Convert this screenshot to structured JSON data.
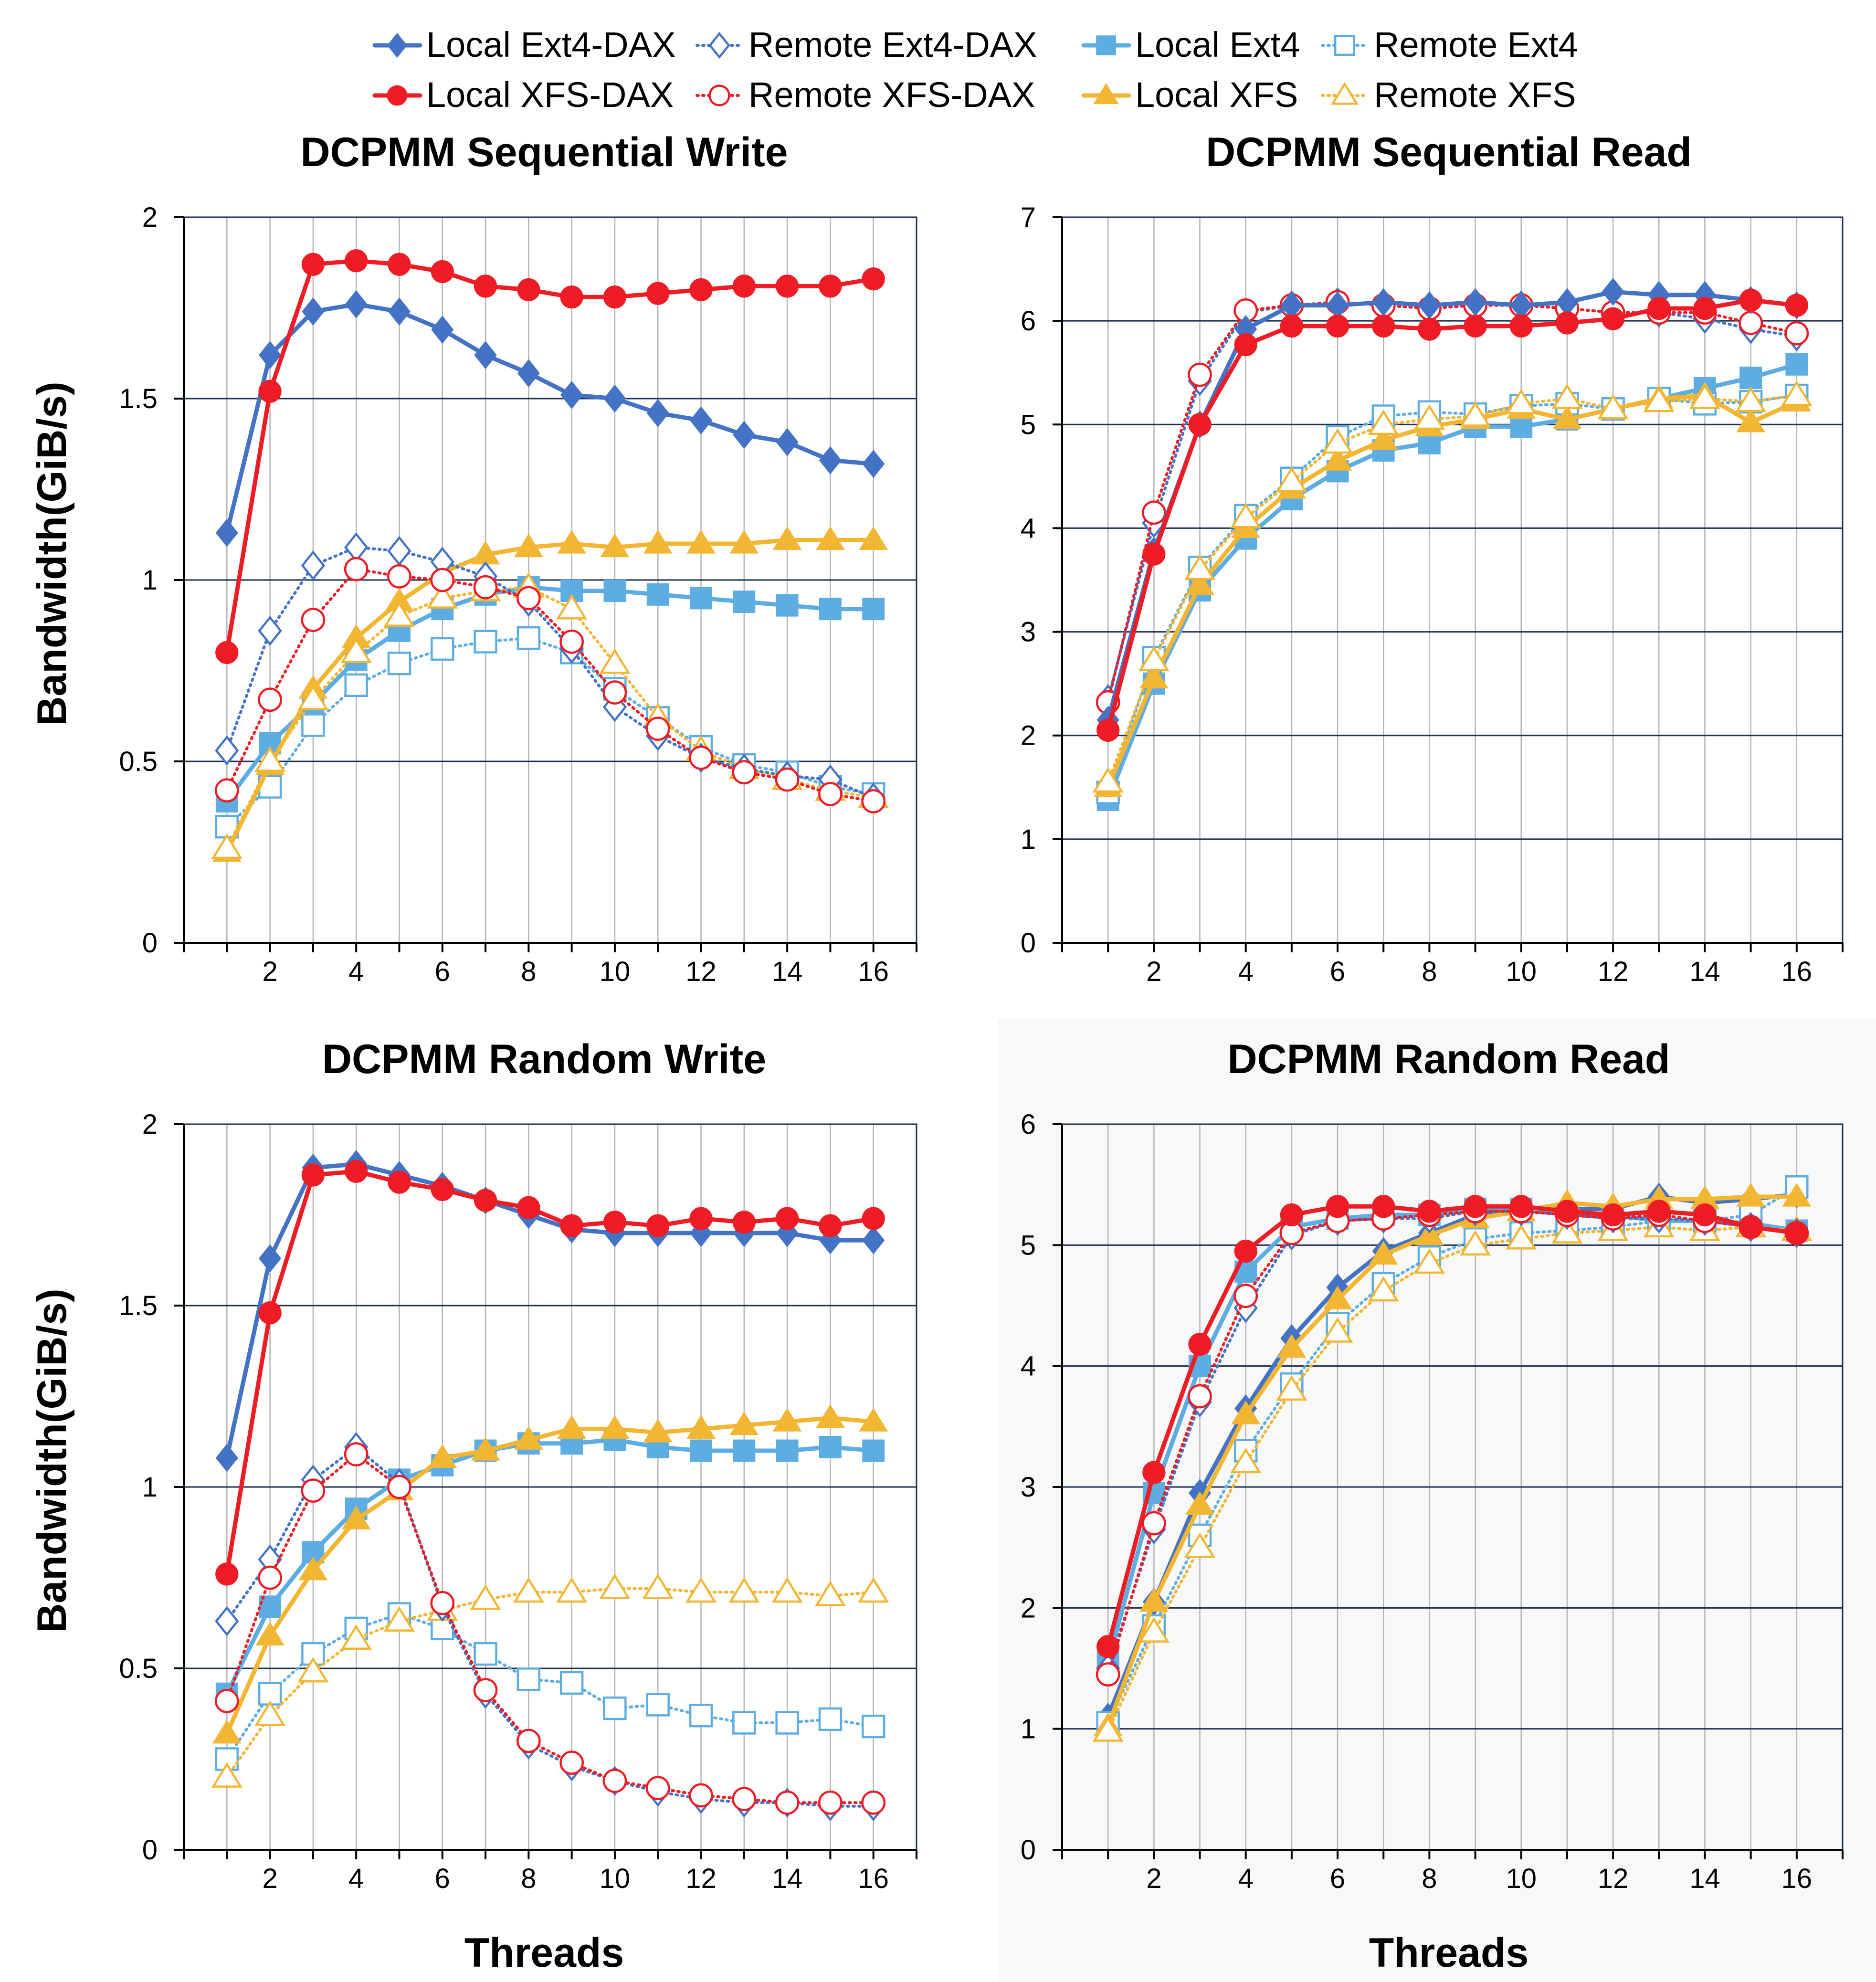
{
  "legend": [
    {
      "label": "Local Ext4-DAX",
      "series_key": "local_ext4_dax"
    },
    {
      "label": "Remote Ext4-DAX",
      "series_key": "remote_ext4_dax"
    },
    {
      "label": "Local Ext4",
      "series_key": "local_ext4"
    },
    {
      "label": "Remote Ext4",
      "series_key": "remote_ext4"
    },
    {
      "label": "Local XFS-DAX",
      "series_key": "local_xfs_dax"
    },
    {
      "label": "Remote XFS-DAX",
      "series_key": "remote_xfs_dax"
    },
    {
      "label": "Local XFS",
      "series_key": "local_xfs"
    },
    {
      "label": "Remote XFS",
      "series_key": "remote_xfs"
    }
  ],
  "series_styles": {
    "local_ext4_dax": {
      "color": "#4472C4",
      "marker": "diamond",
      "filled": true,
      "dashed": false
    },
    "remote_ext4_dax": {
      "color": "#4472C4",
      "marker": "diamond",
      "filled": false,
      "dashed": true
    },
    "local_ext4": {
      "color": "#5DADE2",
      "marker": "square",
      "filled": true,
      "dashed": false
    },
    "remote_ext4": {
      "color": "#5DADE2",
      "marker": "square",
      "filled": false,
      "dashed": true
    },
    "local_xfs_dax": {
      "color": "#EE1C25",
      "marker": "circle",
      "filled": true,
      "dashed": false
    },
    "remote_xfs_dax": {
      "color": "#EE1C25",
      "marker": "circle",
      "filled": false,
      "dashed": true
    },
    "local_xfs": {
      "color": "#F2B632",
      "marker": "triangle",
      "filled": true,
      "dashed": false
    },
    "remote_xfs": {
      "color": "#F2B632",
      "marker": "triangle",
      "filled": false,
      "dashed": true
    }
  },
  "chart_data": [
    {
      "type": "line",
      "title": "DCPMM Sequential Write",
      "xlabel": "",
      "ylabel": "Bandwidth(GiB/s)",
      "x": [
        1,
        2,
        3,
        4,
        5,
        6,
        7,
        8,
        9,
        10,
        11,
        12,
        13,
        14,
        15,
        16
      ],
      "xticks": [
        2,
        4,
        6,
        8,
        10,
        12,
        14,
        16
      ],
      "xlim": [
        0,
        17
      ],
      "ylim": [
        0,
        2
      ],
      "yticks": [
        0,
        0.5,
        1,
        1.5,
        2
      ],
      "ytick_labels": [
        "0",
        "0.5",
        "1",
        "1.5",
        "2"
      ],
      "series": [
        {
          "key": "local_ext4",
          "values": [
            0.39,
            0.55,
            0.66,
            0.78,
            0.86,
            0.92,
            0.96,
            0.98,
            0.97,
            0.97,
            0.96,
            0.95,
            0.94,
            0.93,
            0.92,
            0.92
          ]
        },
        {
          "key": "remote_ext4",
          "values": [
            0.32,
            0.43,
            0.6,
            0.71,
            0.77,
            0.81,
            0.83,
            0.84,
            0.8,
            0.7,
            0.62,
            0.54,
            0.49,
            0.47,
            0.43,
            0.41
          ]
        },
        {
          "key": "local_xfs",
          "values": [
            0.25,
            0.49,
            0.7,
            0.84,
            0.94,
            1.02,
            1.07,
            1.09,
            1.1,
            1.09,
            1.1,
            1.1,
            1.1,
            1.11,
            1.11,
            1.11
          ]
        },
        {
          "key": "remote_xfs",
          "values": [
            0.26,
            0.5,
            0.67,
            0.8,
            0.9,
            0.95,
            0.97,
            0.98,
            0.92,
            0.77,
            0.62,
            0.53,
            0.48,
            0.45,
            0.42,
            0.4
          ]
        },
        {
          "key": "remote_ext4_dax",
          "values": [
            0.53,
            0.86,
            1.04,
            1.09,
            1.08,
            1.05,
            1.01,
            0.94,
            0.81,
            0.65,
            0.57,
            0.51,
            0.48,
            0.46,
            0.45,
            0.4
          ]
        },
        {
          "key": "remote_xfs_dax",
          "values": [
            0.42,
            0.67,
            0.89,
            1.03,
            1.01,
            1.0,
            0.98,
            0.95,
            0.83,
            0.69,
            0.59,
            0.51,
            0.47,
            0.45,
            0.41,
            0.39
          ]
        },
        {
          "key": "local_ext4_dax",
          "values": [
            1.13,
            1.62,
            1.74,
            1.76,
            1.74,
            1.69,
            1.62,
            1.57,
            1.51,
            1.5,
            1.46,
            1.44,
            1.4,
            1.38,
            1.33,
            1.32
          ]
        },
        {
          "key": "local_xfs_dax",
          "values": [
            0.8,
            1.52,
            1.87,
            1.88,
            1.87,
            1.85,
            1.81,
            1.8,
            1.78,
            1.78,
            1.79,
            1.8,
            1.81,
            1.81,
            1.81,
            1.83
          ]
        }
      ]
    },
    {
      "type": "line",
      "title": "DCPMM  Sequential Read",
      "xlabel": "",
      "ylabel": "",
      "x": [
        1,
        2,
        3,
        4,
        5,
        6,
        7,
        8,
        9,
        10,
        11,
        12,
        13,
        14,
        15,
        16
      ],
      "xticks": [
        2,
        4,
        6,
        8,
        10,
        12,
        14,
        16
      ],
      "xlim": [
        0,
        17
      ],
      "ylim": [
        0,
        7
      ],
      "yticks": [
        0,
        1,
        2,
        3,
        4,
        5,
        6,
        7
      ],
      "ytick_labels": [
        "0",
        "1",
        "2",
        "3",
        "4",
        "5",
        "6",
        "7"
      ],
      "series": [
        {
          "key": "local_ext4",
          "values": [
            1.38,
            2.5,
            3.4,
            3.9,
            4.28,
            4.55,
            4.75,
            4.82,
            4.98,
            4.98,
            5.05,
            5.15,
            5.25,
            5.35,
            5.45,
            5.58
          ]
        },
        {
          "key": "remote_ext4",
          "values": [
            1.45,
            2.75,
            3.62,
            4.12,
            4.48,
            4.88,
            5.08,
            5.12,
            5.1,
            5.18,
            5.2,
            5.15,
            5.25,
            5.2,
            5.22,
            5.28
          ]
        },
        {
          "key": "local_xfs",
          "values": [
            1.5,
            2.55,
            3.45,
            4.0,
            4.38,
            4.65,
            4.85,
            4.98,
            5.05,
            5.15,
            5.05,
            5.15,
            5.25,
            5.28,
            5.02,
            5.22
          ]
        },
        {
          "key": "remote_xfs",
          "values": [
            1.55,
            2.72,
            3.6,
            4.1,
            4.45,
            4.82,
            5.0,
            5.05,
            5.08,
            5.2,
            5.25,
            5.15,
            5.22,
            5.25,
            5.22,
            5.28
          ]
        },
        {
          "key": "remote_ext4_dax",
          "values": [
            2.35,
            4.05,
            5.42,
            6.08,
            6.15,
            6.18,
            6.15,
            6.12,
            6.15,
            6.15,
            6.12,
            6.08,
            6.08,
            6.02,
            5.92,
            5.85
          ]
        },
        {
          "key": "remote_xfs_dax",
          "values": [
            2.32,
            4.15,
            5.48,
            6.1,
            6.15,
            6.18,
            6.15,
            6.12,
            6.15,
            6.15,
            6.12,
            6.08,
            6.08,
            6.08,
            5.98,
            5.88
          ]
        },
        {
          "key": "local_ext4_dax",
          "values": [
            2.15,
            3.78,
            5.0,
            5.92,
            6.15,
            6.15,
            6.18,
            6.15,
            6.18,
            6.15,
            6.18,
            6.28,
            6.25,
            6.25,
            6.2,
            6.15
          ]
        },
        {
          "key": "local_xfs_dax",
          "values": [
            2.05,
            3.75,
            5.0,
            5.77,
            5.95,
            5.95,
            5.95,
            5.92,
            5.95,
            5.95,
            5.98,
            6.02,
            6.12,
            6.12,
            6.2,
            6.15
          ]
        }
      ]
    },
    {
      "type": "line",
      "title": "DCPMM Random Write",
      "xlabel": "Threads",
      "ylabel": "Bandwidth(GiB/s)",
      "x": [
        1,
        2,
        3,
        4,
        5,
        6,
        7,
        8,
        9,
        10,
        11,
        12,
        13,
        14,
        15,
        16
      ],
      "xticks": [
        2,
        4,
        6,
        8,
        10,
        12,
        14,
        16
      ],
      "xlim": [
        0,
        17
      ],
      "ylim": [
        0,
        2
      ],
      "yticks": [
        0,
        0.5,
        1,
        1.5,
        2
      ],
      "ytick_labels": [
        "0",
        "0.5",
        "1",
        "1.5",
        "2"
      ],
      "series": [
        {
          "key": "local_ext4",
          "values": [
            0.43,
            0.67,
            0.82,
            0.94,
            1.02,
            1.06,
            1.1,
            1.12,
            1.12,
            1.13,
            1.11,
            1.1,
            1.1,
            1.1,
            1.11,
            1.1
          ]
        },
        {
          "key": "remote_ext4",
          "values": [
            0.25,
            0.43,
            0.54,
            0.61,
            0.65,
            0.61,
            0.54,
            0.47,
            0.46,
            0.39,
            0.4,
            0.37,
            0.35,
            0.35,
            0.36,
            0.34
          ]
        },
        {
          "key": "local_xfs",
          "values": [
            0.32,
            0.59,
            0.77,
            0.91,
            0.99,
            1.08,
            1.1,
            1.13,
            1.16,
            1.16,
            1.15,
            1.16,
            1.17,
            1.18,
            1.19,
            1.18
          ]
        },
        {
          "key": "remote_xfs",
          "values": [
            0.2,
            0.37,
            0.49,
            0.58,
            0.63,
            0.66,
            0.69,
            0.71,
            0.71,
            0.72,
            0.72,
            0.71,
            0.71,
            0.71,
            0.7,
            0.71
          ]
        },
        {
          "key": "remote_ext4_dax",
          "values": [
            0.63,
            0.8,
            1.02,
            1.11,
            1.01,
            0.67,
            0.43,
            0.29,
            0.23,
            0.19,
            0.16,
            0.14,
            0.13,
            0.13,
            0.12,
            0.12
          ]
        },
        {
          "key": "remote_xfs_dax",
          "values": [
            0.41,
            0.75,
            0.99,
            1.09,
            1.0,
            0.68,
            0.44,
            0.3,
            0.24,
            0.19,
            0.17,
            0.15,
            0.14,
            0.13,
            0.13,
            0.13
          ]
        },
        {
          "key": "local_ext4_dax",
          "values": [
            1.08,
            1.63,
            1.88,
            1.89,
            1.86,
            1.83,
            1.79,
            1.75,
            1.71,
            1.7,
            1.7,
            1.7,
            1.7,
            1.7,
            1.68,
            1.68
          ]
        },
        {
          "key": "local_xfs_dax",
          "values": [
            0.76,
            1.48,
            1.86,
            1.87,
            1.84,
            1.82,
            1.79,
            1.77,
            1.72,
            1.73,
            1.72,
            1.74,
            1.73,
            1.74,
            1.72,
            1.74
          ]
        }
      ]
    },
    {
      "type": "line",
      "title": "DCPMM  Random Read",
      "xlabel": "Threads",
      "ylabel": "",
      "x": [
        1,
        2,
        3,
        4,
        5,
        6,
        7,
        8,
        9,
        10,
        11,
        12,
        13,
        14,
        15,
        16
      ],
      "xticks": [
        2,
        4,
        6,
        8,
        10,
        12,
        14,
        16
      ],
      "xlim": [
        0,
        17
      ],
      "ylim": [
        0,
        6
      ],
      "yticks": [
        0,
        1,
        2,
        3,
        4,
        5,
        6
      ],
      "ytick_labels": [
        "0",
        "1",
        "2",
        "3",
        "4",
        "5",
        "6"
      ],
      "series": [
        {
          "key": "local_ext4_dax",
          "values": [
            1.1,
            2.05,
            2.95,
            3.65,
            4.23,
            4.65,
            4.95,
            5.1,
            5.25,
            5.28,
            5.3,
            5.3,
            5.4,
            5.35,
            5.38,
            5.42
          ]
        },
        {
          "key": "local_ext4",
          "values": [
            1.55,
            2.95,
            4.0,
            4.78,
            5.15,
            5.22,
            5.25,
            5.25,
            5.3,
            5.3,
            5.25,
            5.25,
            5.2,
            5.2,
            5.18,
            5.12
          ]
        },
        {
          "key": "remote_ext4",
          "values": [
            1.05,
            1.85,
            2.6,
            3.3,
            3.85,
            4.35,
            4.68,
            4.9,
            5.05,
            5.1,
            5.12,
            5.15,
            5.2,
            5.2,
            5.25,
            5.48
          ]
        },
        {
          "key": "local_xfs",
          "values": [
            1.02,
            2.05,
            2.85,
            3.6,
            4.15,
            4.55,
            4.92,
            5.08,
            5.22,
            5.28,
            5.35,
            5.32,
            5.38,
            5.38,
            5.4,
            5.4
          ]
        },
        {
          "key": "remote_xfs",
          "values": [
            0.98,
            1.8,
            2.5,
            3.2,
            3.8,
            4.28,
            4.62,
            4.85,
            5.0,
            5.05,
            5.1,
            5.12,
            5.15,
            5.12,
            5.15,
            5.12
          ]
        },
        {
          "key": "remote_ext4_dax",
          "values": [
            1.5,
            2.65,
            3.7,
            4.48,
            5.08,
            5.2,
            5.22,
            5.22,
            5.28,
            5.28,
            5.25,
            5.22,
            5.22,
            5.2,
            5.15,
            5.1
          ]
        },
        {
          "key": "remote_xfs_dax",
          "values": [
            1.45,
            2.7,
            3.75,
            4.58,
            5.1,
            5.2,
            5.22,
            5.25,
            5.28,
            5.28,
            5.25,
            5.22,
            5.25,
            5.2,
            5.15,
            5.1
          ]
        },
        {
          "key": "local_xfs_dax",
          "values": [
            1.68,
            3.12,
            4.18,
            4.95,
            5.25,
            5.32,
            5.32,
            5.28,
            5.32,
            5.32,
            5.28,
            5.25,
            5.28,
            5.25,
            5.15,
            5.1
          ]
        }
      ]
    }
  ]
}
